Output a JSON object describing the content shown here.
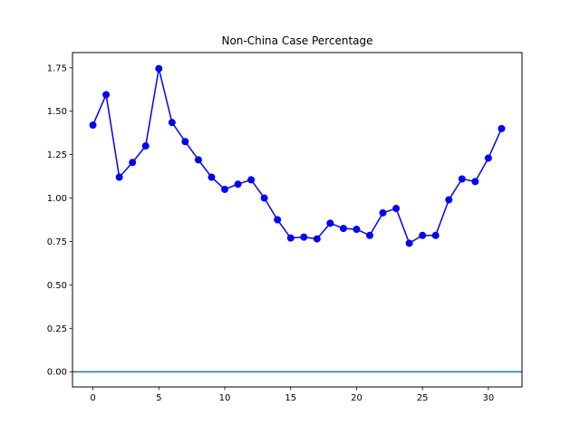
{
  "chart_data": {
    "type": "line",
    "title": "Non-China Case Percentage",
    "xlabel": "",
    "ylabel": "",
    "xlim": [
      -1.55,
      32.55
    ],
    "ylim": [
      -0.0875,
      1.8375
    ],
    "x_ticks": [
      0,
      5,
      10,
      15,
      20,
      25,
      30
    ],
    "y_ticks": [
      0.0,
      0.25,
      0.5,
      0.75,
      1.0,
      1.25,
      1.5,
      1.75
    ],
    "y_tick_labels": [
      "0.00",
      "0.25",
      "0.50",
      "0.75",
      "1.00",
      "1.25",
      "1.50",
      "1.75"
    ],
    "grid": false,
    "series": [
      {
        "color": "#0000ff",
        "marker": "circle",
        "x": [
          0,
          1,
          2,
          3,
          4,
          5,
          6,
          7,
          8,
          9,
          10,
          11,
          12,
          13,
          14,
          15,
          16,
          17,
          18,
          19,
          20,
          21,
          22,
          23,
          24,
          25,
          26,
          27,
          28,
          29,
          30,
          31
        ],
        "values": [
          1.42,
          1.595,
          1.12,
          1.205,
          1.3,
          1.745,
          1.435,
          1.325,
          1.22,
          1.12,
          1.05,
          1.08,
          1.105,
          1.0,
          0.875,
          0.77,
          0.775,
          0.765,
          0.855,
          0.825,
          0.82,
          0.785,
          0.915,
          0.94,
          0.74,
          0.785,
          0.785,
          0.99,
          1.11,
          1.095,
          1.23,
          1.4
        ]
      }
    ],
    "reference_line": {
      "y": 0.0,
      "color": "#1f77b4"
    }
  }
}
